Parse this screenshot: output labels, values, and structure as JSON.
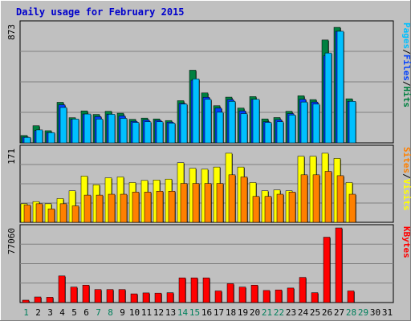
{
  "title": "Daily usage for February 2015",
  "colors": {
    "hits": "#008040",
    "files": "#0040ff",
    "pages": "#00c0ff",
    "visits": "#ffff00",
    "sites": "#ff8000",
    "kbytes": "#ff0000",
    "weekend_label": "#00805c",
    "weekday_label": "#000000",
    "background": "#c0c0c0",
    "grid": "#808080"
  },
  "chart_data": [
    {
      "type": "bar",
      "panel": "hits-files-pages",
      "ymax_label": "873",
      "ylim": [
        0,
        873
      ],
      "legend": [
        "Pages",
        "Files",
        "Hits"
      ],
      "legend_separator": "/",
      "categories": [
        "1",
        "2",
        "3",
        "4",
        "5",
        "6",
        "7",
        "8",
        "9",
        "10",
        "11",
        "12",
        "13",
        "14",
        "15",
        "16",
        "17",
        "18",
        "19",
        "20",
        "21",
        "22",
        "23",
        "24",
        "25",
        "26",
        "27",
        "28",
        "29",
        "30",
        "31"
      ],
      "series": [
        {
          "name": "Hits",
          "values": [
            54,
            126,
            89,
            298,
            185,
            235,
            209,
            232,
            218,
            173,
            182,
            176,
            164,
            310,
            534,
            367,
            273,
            336,
            256,
            340,
            176,
            186,
            232,
            346,
            318,
            756,
            849,
            324,
            0,
            0,
            0
          ]
        },
        {
          "name": "Files",
          "values": [
            42,
            90,
            76,
            280,
            173,
            212,
            193,
            210,
            198,
            158,
            168,
            165,
            152,
            290,
            460,
            335,
            255,
            318,
            235,
            320,
            155,
            170,
            215,
            320,
            300,
            640,
            820,
            305,
            0,
            0,
            0
          ]
        },
        {
          "name": "Pages",
          "values": [
            40,
            95,
            75,
            260,
            175,
            212,
            175,
            210,
            180,
            150,
            155,
            155,
            145,
            285,
            470,
            320,
            225,
            305,
            215,
            320,
            150,
            155,
            205,
            300,
            285,
            660,
            820,
            305,
            0,
            0,
            0
          ]
        }
      ]
    },
    {
      "type": "bar",
      "panel": "visits-sites",
      "ymax_label": "171",
      "ylim": [
        0,
        171
      ],
      "legend": [
        "Sites",
        "Visits"
      ],
      "legend_separator": "/",
      "categories": [
        "1",
        "2",
        "3",
        "4",
        "5",
        "6",
        "7",
        "8",
        "9",
        "10",
        "11",
        "12",
        "13",
        "14",
        "15",
        "16",
        "17",
        "18",
        "19",
        "20",
        "21",
        "22",
        "23",
        "24",
        "25",
        "26",
        "27",
        "28",
        "29",
        "30",
        "31"
      ],
      "series": [
        {
          "name": "Visits",
          "values": [
            43,
            48,
            43,
            55,
            73,
            107,
            87,
            103,
            105,
            92,
            97,
            98,
            100,
            138,
            125,
            123,
            128,
            160,
            128,
            92,
            73,
            75,
            73,
            153,
            153,
            160,
            148,
            92,
            0,
            0,
            0
          ]
        },
        {
          "name": "Sites",
          "values": [
            40,
            43,
            31,
            43,
            38,
            63,
            63,
            65,
            65,
            70,
            70,
            72,
            72,
            90,
            90,
            90,
            90,
            110,
            105,
            60,
            60,
            65,
            70,
            110,
            110,
            118,
            108,
            65,
            0,
            0,
            0
          ]
        }
      ]
    },
    {
      "type": "bar",
      "panel": "kbytes",
      "ymax_label": "77060",
      "ylim": [
        0,
        77060
      ],
      "legend": [
        "KBytes"
      ],
      "categories": [
        "1",
        "2",
        "3",
        "4",
        "5",
        "6",
        "7",
        "8",
        "9",
        "10",
        "11",
        "12",
        "13",
        "14",
        "15",
        "16",
        "17",
        "18",
        "19",
        "20",
        "21",
        "22",
        "23",
        "24",
        "25",
        "26",
        "27",
        "28",
        "29",
        "30",
        "31"
      ],
      "series": [
        {
          "name": "KBytes",
          "values": [
            2500,
            5800,
            5500,
            27500,
            16000,
            18000,
            13500,
            13500,
            13500,
            9000,
            10000,
            9800,
            10200,
            25500,
            25500,
            25500,
            12000,
            19500,
            16000,
            18000,
            12500,
            13000,
            15000,
            26000,
            10200,
            67500,
            77060,
            12000,
            0,
            0,
            0
          ]
        }
      ]
    }
  ],
  "weekend_days": [
    1,
    7,
    8,
    14,
    15,
    21,
    22,
    28,
    29
  ]
}
